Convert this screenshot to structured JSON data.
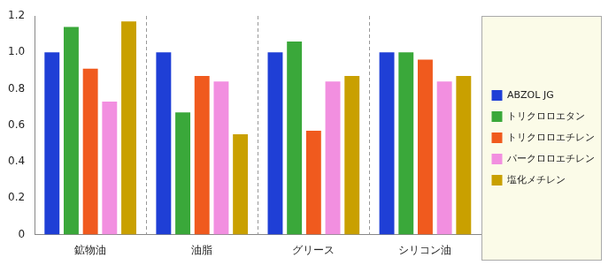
{
  "chart_data": {
    "type": "bar",
    "categories": [
      "鉱物油",
      "油脂",
      "グリース",
      "シリコン油"
    ],
    "series": [
      {
        "name": "ABZOL JG",
        "color": "#1f3fd6",
        "values": [
          1.0,
          1.0,
          1.0,
          1.0
        ]
      },
      {
        "name": "トリクロロエタン",
        "color": "#3aa83a",
        "values": [
          1.14,
          0.67,
          1.06,
          1.0
        ]
      },
      {
        "name": "トリクロロエチレン",
        "color": "#f05a1e",
        "values": [
          0.91,
          0.87,
          0.57,
          0.96
        ]
      },
      {
        "name": "パークロロエチレン",
        "color": "#f28fe0",
        "values": [
          0.73,
          0.84,
          0.84,
          0.84
        ]
      },
      {
        "name": "塩化メチレン",
        "color": "#c9a000",
        "values": [
          1.17,
          0.55,
          0.87,
          0.87
        ]
      }
    ],
    "ylim": [
      0,
      1.2
    ],
    "yticks": [
      0,
      0.2,
      0.4,
      0.6,
      0.8,
      {
        "value": 1,
        "label": "1.0"
      },
      1.2
    ],
    "legend": "right"
  }
}
